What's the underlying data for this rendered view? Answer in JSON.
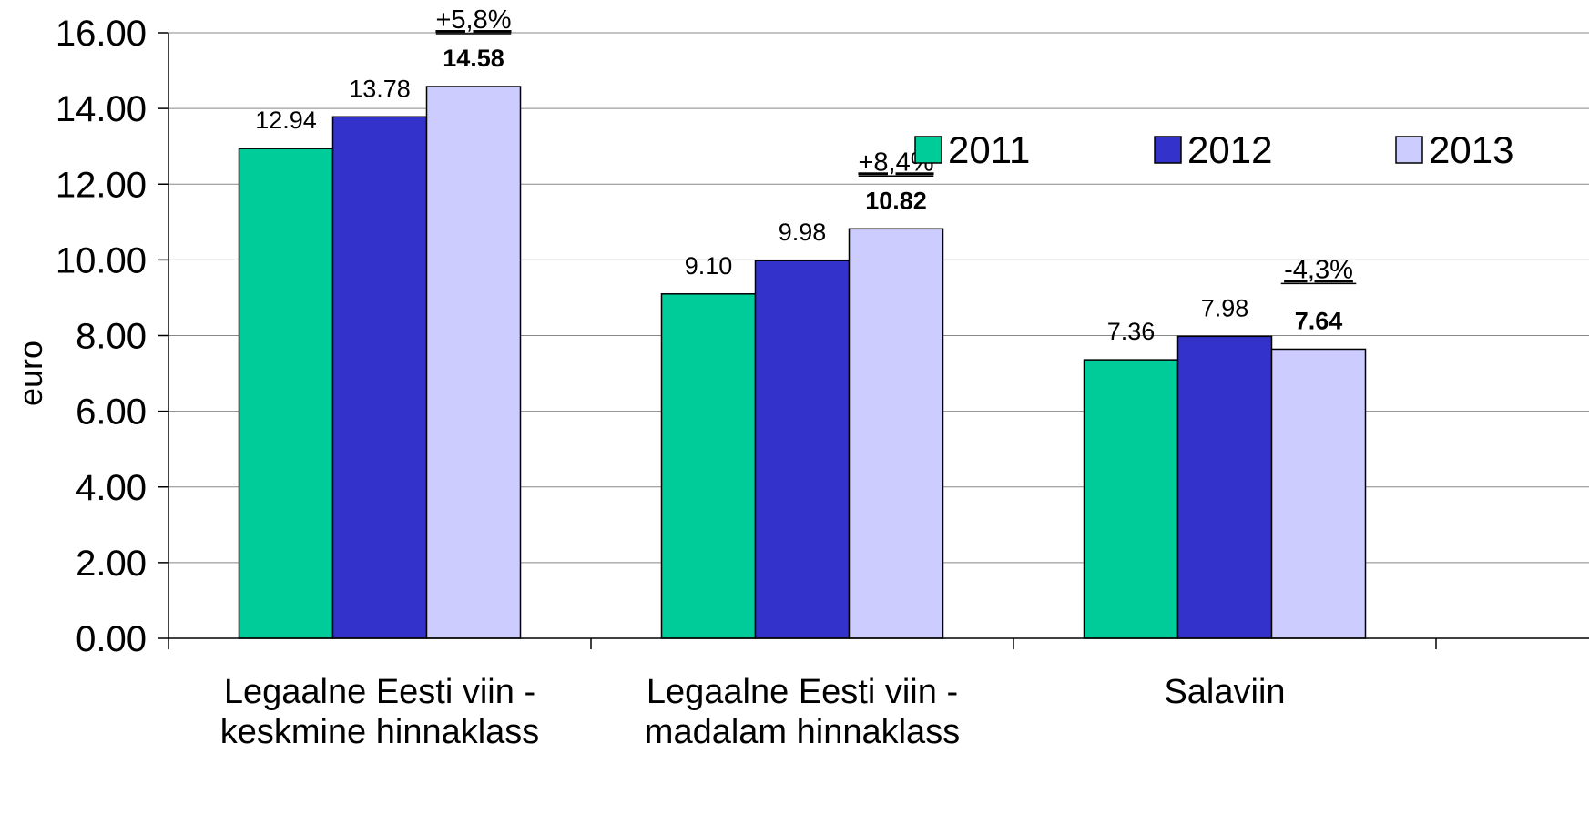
{
  "chart_data": {
    "type": "bar",
    "title": "",
    "xlabel": "",
    "ylabel": "euro",
    "ylim": [
      0,
      16
    ],
    "yticks": [
      "0.00",
      "2.00",
      "4.00",
      "6.00",
      "8.00",
      "10.00",
      "12.00",
      "14.00",
      "16.00"
    ],
    "grid": true,
    "legend_position": "top-right",
    "categories": [
      [
        "Legaalne Eesti viin -",
        "keskmine hinnaklass"
      ],
      [
        "Legaalne Eesti viin -",
        "madalam hinnaklass"
      ],
      [
        "Salaviin"
      ]
    ],
    "series": [
      {
        "name": "2011",
        "color": "#00cc99",
        "values": [
          12.94,
          9.1,
          7.36
        ],
        "labels": [
          "12.94",
          "9.10",
          "7.36"
        ],
        "bold": false
      },
      {
        "name": "2012",
        "color": "#3333cc",
        "values": [
          13.78,
          9.98,
          7.98
        ],
        "labels": [
          "13.78",
          "9.98",
          "7.98"
        ],
        "bold": false
      },
      {
        "name": "2013",
        "color": "#ccccff",
        "values": [
          14.58,
          10.82,
          7.64
        ],
        "labels": [
          "14.58",
          "10.82",
          "7.64"
        ],
        "bold": true
      }
    ],
    "annotations": [
      "+5,8%",
      "+8,4%",
      "-4,3%"
    ]
  }
}
